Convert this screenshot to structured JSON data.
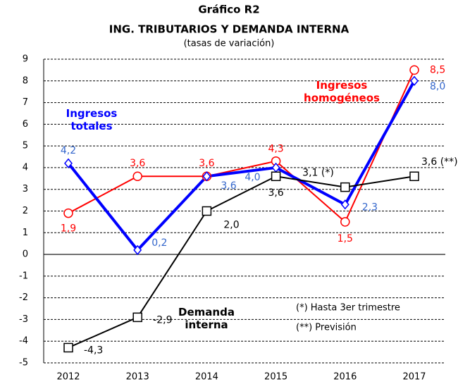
{
  "chart_data": {
    "type": "line",
    "title": "Gráfico R2",
    "subtitle": "ING. TRIBUTARIOS Y DEMANDA INTERNA",
    "note_units": "(tasas de variación)",
    "categories": [
      "2012",
      "2013",
      "2014",
      "2015",
      "2016",
      "2017"
    ],
    "series": [
      {
        "name": "Ingresos homogéneos",
        "color": "#ff0000",
        "marker": "circle",
        "values": [
          1.9,
          3.6,
          3.6,
          4.3,
          1.5,
          8.5
        ],
        "value_labels": [
          "1,9",
          "3,6",
          "3,6",
          "4,3",
          "1,5",
          "8,5"
        ]
      },
      {
        "name": "Ingresos totales",
        "color": "#0000ff",
        "marker": "diamond",
        "values": [
          4.2,
          0.2,
          3.6,
          4.0,
          2.3,
          8.0
        ],
        "value_labels": [
          "4,2",
          "0,2",
          "3,6",
          "4,0",
          "2,3",
          "8,0"
        ]
      },
      {
        "name": "Demanda interna",
        "color": "#000000",
        "marker": "square",
        "values": [
          -4.3,
          -2.9,
          2.0,
          3.6,
          3.1,
          3.6
        ],
        "value_labels": [
          "-4,3",
          "-2,9",
          "2,0",
          "3,6",
          "3,1 (*)",
          "3,6 (**)"
        ]
      }
    ],
    "notes": [
      "(*) Hasta 3er trimestre",
      "(**) Previsión"
    ],
    "ylim": [
      -5,
      9
    ],
    "yticks": [
      -5,
      -4,
      -3,
      -2,
      -1,
      0,
      1,
      2,
      3,
      4,
      5,
      6,
      7,
      8,
      9
    ],
    "grid": true
  }
}
